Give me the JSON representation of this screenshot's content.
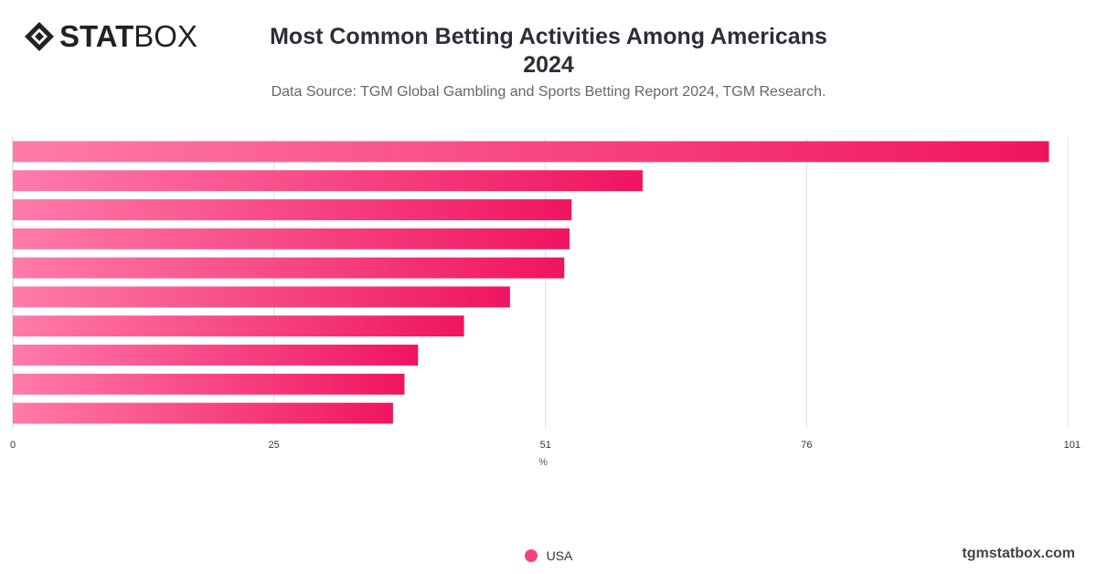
{
  "logo": {
    "bold_text": "STAT",
    "light_text": "BOX"
  },
  "header": {
    "title_line1": "Most Common Betting Activities Among Americans",
    "title_line2": "2024",
    "subtitle": "Data Source: TGM Global Gambling and Sports Betting Report 2024, TGM Research."
  },
  "footer": {
    "url": "tgmstatbox.com"
  },
  "colors": {
    "bar_start": "#ff7ba9",
    "bar_end": "#f0145f",
    "legend_dot": "#f0457f",
    "grid": "#e0e0e0",
    "axis_text": "#333333"
  },
  "chart_data": {
    "type": "bar",
    "orientation": "horizontal",
    "xlabel": "%",
    "xlim": [
      0,
      101
    ],
    "x_ticks": [
      "0",
      "25",
      "51",
      "76",
      "101"
    ],
    "x_tick_values": [
      0,
      25,
      51,
      76,
      101
    ],
    "grid": true,
    "legend_position": "bottom-center",
    "series": [
      {
        "name": "USA",
        "values": [
          99.2,
          60.3,
          53.5,
          53.3,
          52.8,
          47.6,
          43.2,
          38.8,
          37.5,
          36.4
        ]
      }
    ]
  }
}
